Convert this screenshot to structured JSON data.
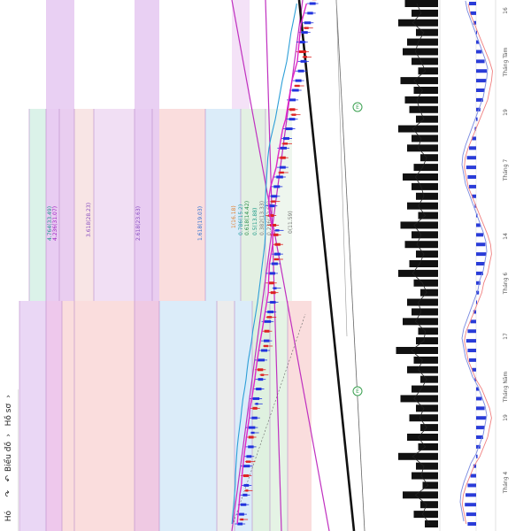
{
  "toolbar": {
    "undo_icon": "undo-icon",
    "undo_label": "Hó",
    "redo_icon": "redo-icon",
    "chart_type_label": "Biểu đồ",
    "scale_label": "Hồ sơ"
  },
  "fib_upper": {
    "levels": [
      {
        "label": "4.764(33.49)",
        "color": "#1a9a86"
      },
      {
        "label": "4.236(31.07)",
        "color": "#a020c0"
      },
      {
        "label": "3.618(28.23)",
        "color": "#8a4fc0"
      },
      {
        "label": "2.618(23.63)",
        "color": "#8a4fc0"
      },
      {
        "label": "1.618(19.03)",
        "color": "#2d6fd0"
      },
      {
        "label": "1(16.18)",
        "color": "#e08030"
      },
      {
        "label": "0.786(15.2)",
        "color": "#22a0a0"
      },
      {
        "label": "0.618(14.42)",
        "color": "#2c8e4a"
      },
      {
        "label": "0.5(13.88)",
        "color": "#1a9a86"
      },
      {
        "label": "0.382(13.33)",
        "color": "#7a7a7a"
      },
      {
        "label": "0.236(12.68)",
        "color": "#7a7a7a"
      },
      {
        "label": "0(11.59)",
        "color": "#7a7a7a"
      }
    ]
  },
  "markers": [
    {
      "text": "E",
      "color": "#3aa050"
    },
    {
      "text": "E",
      "color": "#3aa050"
    }
  ],
  "chart_data": {
    "type": "line",
    "title": "",
    "time_axis": {
      "ticks": [
        "Tháng 4",
        "19",
        "Tháng Năm",
        "17",
        "Tháng 6",
        "14",
        "Tháng 7",
        "19",
        "Tháng Tám",
        "16"
      ]
    },
    "price_series": {
      "name": "",
      "values": [
        6.2,
        6.5,
        6.9,
        7.1,
        7.4,
        7.0,
        7.6,
        7.9,
        8.3,
        8.0,
        8.6,
        9.0,
        8.8,
        9.4,
        9.8,
        10.1,
        9.7,
        10.4,
        10.9,
        11.3,
        11.0,
        11.6,
        12.1,
        12.5,
        12.2,
        11.8,
        12.4,
        12.9,
        13.4,
        13.0,
        12.6,
        12.1,
        11.8,
        12.3,
        12.8,
        13.3,
        13.9,
        14.4,
        14.0,
        14.6,
        15.1,
        15.7,
        16.2,
        15.8,
        16.3,
        16.9,
        17.4,
        17.9,
        18.3,
        17.6,
        18.1,
        18.6,
        19.2,
        19.6,
        20.1
      ]
    },
    "volume_series": {
      "values": [
        0.3,
        0.55,
        0.4,
        0.8,
        0.35,
        0.6,
        0.5,
        0.9,
        0.45,
        0.7,
        0.4,
        0.65,
        0.5,
        0.85,
        0.6,
        0.4,
        0.7,
        0.55,
        0.95,
        0.5,
        0.45,
        0.8,
        0.6,
        0.7,
        0.4,
        0.55,
        0.9,
        0.65,
        0.5,
        0.75,
        0.6,
        0.85,
        0.45,
        0.7,
        0.5,
        0.6,
        0.8,
        0.55,
        0.4,
        0.7,
        0.6,
        0.9,
        0.5,
        0.65,
        0.75,
        0.55,
        0.85,
        0.45,
        0.6,
        0.8,
        0.7,
        0.5,
        0.9,
        0.6,
        0.75
      ]
    },
    "oscillator": {
      "histogram": [
        -0.6,
        -0.7,
        -0.8,
        -0.75,
        -0.6,
        -0.4,
        -0.2,
        0.1,
        0.3,
        0.5,
        0.6,
        0.7,
        0.6,
        0.4,
        0.2,
        -0.1,
        -0.3,
        -0.5,
        -0.6,
        -0.7,
        -0.6,
        -0.4,
        -0.2,
        0.0,
        0.2,
        0.3,
        0.5,
        0.6,
        0.7,
        0.65,
        0.5,
        0.3,
        0.1,
        -0.1,
        -0.3,
        -0.5,
        -0.6,
        -0.7,
        -0.65,
        -0.5,
        -0.3,
        -0.1,
        0.1,
        0.3,
        0.5,
        0.6,
        0.7,
        0.75,
        0.6,
        0.4,
        0.2,
        0.0,
        -0.2,
        -0.4,
        -0.5
      ]
    }
  },
  "colors": {
    "up": "#2233dd",
    "down": "#dd2222",
    "ma_fast": "#e026c8",
    "ma_slow": "#2d9fd8",
    "trend": "#111111",
    "fib_purple": "#e3c9f1",
    "fib_pink": "#f8d2d2",
    "fib_blue": "#cfe6f7",
    "fib_green": "#d4ecd6",
    "fib_gray": "#e6e6e6"
  }
}
